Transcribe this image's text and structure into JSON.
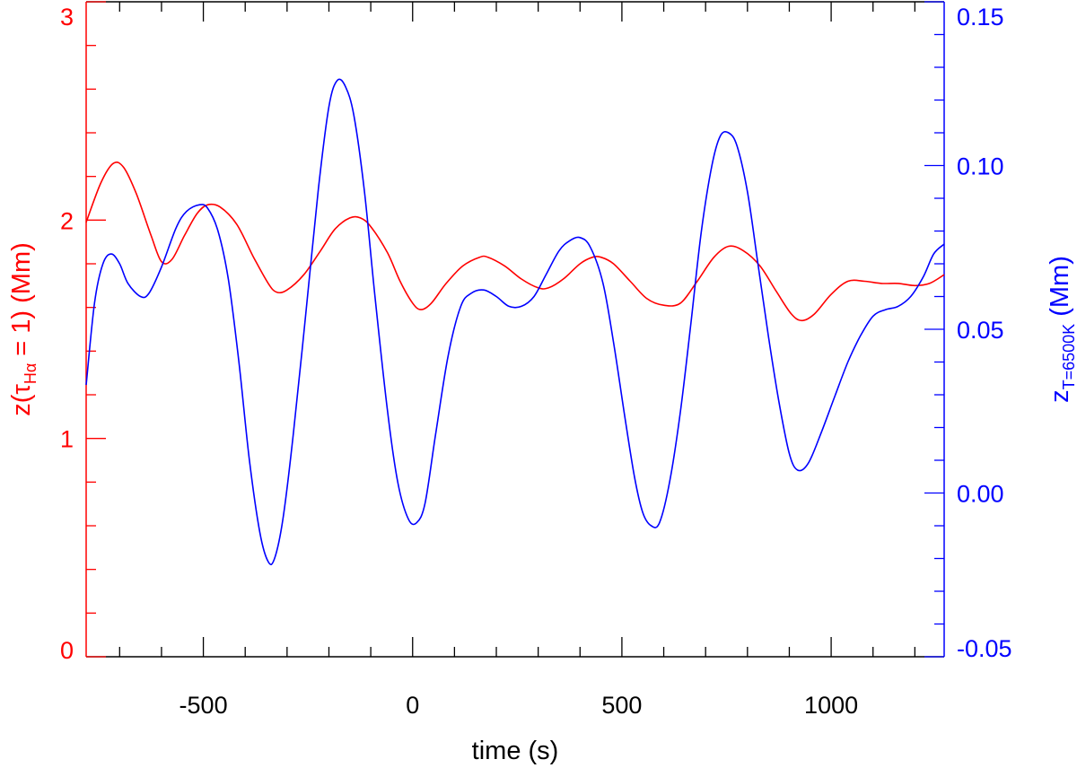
{
  "chart_data": {
    "type": "line",
    "xlabel": "time (s)",
    "ylabel_left": {
      "prefix": "z(τ",
      "sub": "Hα",
      "suffix": " = 1) (Mm)"
    },
    "ylabel_right": {
      "prefix": "z",
      "sub": "T=6500K",
      "suffix": " (Mm)"
    },
    "xlim": [
      -780,
      1270
    ],
    "ylim_left": [
      0,
      3
    ],
    "ylim_right": [
      -0.05,
      0.15
    ],
    "x_ticks": [
      -500,
      0,
      500,
      1000
    ],
    "y_left_ticks": [
      0,
      1,
      2,
      3
    ],
    "y_right_ticks": [
      -0.05,
      0.0,
      0.05,
      0.1,
      0.15
    ],
    "x_tick_labels": [
      "-500",
      "0",
      "500",
      "1000"
    ],
    "y_left_tick_labels": [
      "0",
      "1",
      "2",
      "3"
    ],
    "y_right_tick_labels": [
      "-0.05",
      "0.00",
      "0.05",
      "0.10",
      "0.15"
    ],
    "grid": false,
    "colors": {
      "left": "#ff0000",
      "right": "#0000ff",
      "axes": "#000000"
    },
    "series": [
      {
        "axis": "left",
        "color": "#ff0000",
        "points": [
          [
            -780,
            1.99
          ],
          [
            -745,
            2.17
          ],
          [
            -715,
            2.26
          ],
          [
            -690,
            2.24
          ],
          [
            -660,
            2.12
          ],
          [
            -625,
            1.93
          ],
          [
            -600,
            1.81
          ],
          [
            -575,
            1.82
          ],
          [
            -545,
            1.93
          ],
          [
            -515,
            2.03
          ],
          [
            -490,
            2.07
          ],
          [
            -460,
            2.06
          ],
          [
            -420,
            1.98
          ],
          [
            -380,
            1.83
          ],
          [
            -345,
            1.71
          ],
          [
            -325,
            1.67
          ],
          [
            -300,
            1.68
          ],
          [
            -260,
            1.75
          ],
          [
            -220,
            1.86
          ],
          [
            -185,
            1.96
          ],
          [
            -150,
            2.01
          ],
          [
            -125,
            2.01
          ],
          [
            -100,
            1.97
          ],
          [
            -60,
            1.85
          ],
          [
            -30,
            1.72
          ],
          [
            0,
            1.62
          ],
          [
            20,
            1.59
          ],
          [
            45,
            1.62
          ],
          [
            80,
            1.71
          ],
          [
            120,
            1.79
          ],
          [
            160,
            1.83
          ],
          [
            180,
            1.83
          ],
          [
            220,
            1.79
          ],
          [
            260,
            1.73
          ],
          [
            300,
            1.69
          ],
          [
            325,
            1.69
          ],
          [
            360,
            1.73
          ],
          [
            400,
            1.8
          ],
          [
            430,
            1.83
          ],
          [
            450,
            1.83
          ],
          [
            480,
            1.8
          ],
          [
            520,
            1.72
          ],
          [
            560,
            1.64
          ],
          [
            600,
            1.61
          ],
          [
            640,
            1.62
          ],
          [
            680,
            1.72
          ],
          [
            720,
            1.83
          ],
          [
            755,
            1.88
          ],
          [
            790,
            1.86
          ],
          [
            830,
            1.79
          ],
          [
            870,
            1.67
          ],
          [
            905,
            1.57
          ],
          [
            930,
            1.54
          ],
          [
            960,
            1.57
          ],
          [
            1000,
            1.66
          ],
          [
            1040,
            1.72
          ],
          [
            1080,
            1.72
          ],
          [
            1120,
            1.71
          ],
          [
            1160,
            1.71
          ],
          [
            1200,
            1.7
          ],
          [
            1235,
            1.71
          ],
          [
            1270,
            1.75
          ]
        ]
      },
      {
        "axis": "right",
        "color": "#0000ff",
        "points": [
          [
            -780,
            0.033
          ],
          [
            -760,
            0.058
          ],
          [
            -740,
            0.07
          ],
          [
            -720,
            0.073
          ],
          [
            -700,
            0.07
          ],
          [
            -680,
            0.064
          ],
          [
            -650,
            0.06
          ],
          [
            -630,
            0.061
          ],
          [
            -600,
            0.069
          ],
          [
            -565,
            0.081
          ],
          [
            -540,
            0.086
          ],
          [
            -510,
            0.088
          ],
          [
            -490,
            0.087
          ],
          [
            -465,
            0.08
          ],
          [
            -440,
            0.065
          ],
          [
            -415,
            0.04
          ],
          [
            -390,
            0.01
          ],
          [
            -365,
            -0.012
          ],
          [
            -345,
            -0.021
          ],
          [
            -330,
            -0.02
          ],
          [
            -310,
            -0.008
          ],
          [
            -285,
            0.018
          ],
          [
            -255,
            0.055
          ],
          [
            -225,
            0.093
          ],
          [
            -200,
            0.118
          ],
          [
            -180,
            0.126
          ],
          [
            -160,
            0.124
          ],
          [
            -140,
            0.115
          ],
          [
            -115,
            0.092
          ],
          [
            -90,
            0.06
          ],
          [
            -60,
            0.025
          ],
          [
            -35,
            0.003
          ],
          [
            -10,
            -0.008
          ],
          [
            10,
            -0.009
          ],
          [
            30,
            -0.003
          ],
          [
            55,
            0.018
          ],
          [
            85,
            0.042
          ],
          [
            115,
            0.057
          ],
          [
            140,
            0.061
          ],
          [
            170,
            0.062
          ],
          [
            200,
            0.06
          ],
          [
            230,
            0.057
          ],
          [
            260,
            0.057
          ],
          [
            290,
            0.06
          ],
          [
            320,
            0.067
          ],
          [
            350,
            0.074
          ],
          [
            375,
            0.077
          ],
          [
            400,
            0.078
          ],
          [
            425,
            0.075
          ],
          [
            455,
            0.064
          ],
          [
            480,
            0.046
          ],
          [
            505,
            0.025
          ],
          [
            530,
            0.005
          ],
          [
            550,
            -0.006
          ],
          [
            570,
            -0.01
          ],
          [
            590,
            -0.009
          ],
          [
            615,
            0.004
          ],
          [
            640,
            0.025
          ],
          [
            665,
            0.052
          ],
          [
            690,
            0.08
          ],
          [
            715,
            0.1
          ],
          [
            735,
            0.109
          ],
          [
            755,
            0.11
          ],
          [
            775,
            0.106
          ],
          [
            800,
            0.092
          ],
          [
            825,
            0.07
          ],
          [
            850,
            0.048
          ],
          [
            875,
            0.028
          ],
          [
            900,
            0.012
          ],
          [
            920,
            0.007
          ],
          [
            945,
            0.009
          ],
          [
            975,
            0.018
          ],
          [
            1010,
            0.03
          ],
          [
            1040,
            0.04
          ],
          [
            1070,
            0.048
          ],
          [
            1100,
            0.054
          ],
          [
            1130,
            0.056
          ],
          [
            1160,
            0.057
          ],
          [
            1190,
            0.06
          ],
          [
            1220,
            0.066
          ],
          [
            1245,
            0.073
          ],
          [
            1270,
            0.076
          ]
        ]
      }
    ]
  }
}
